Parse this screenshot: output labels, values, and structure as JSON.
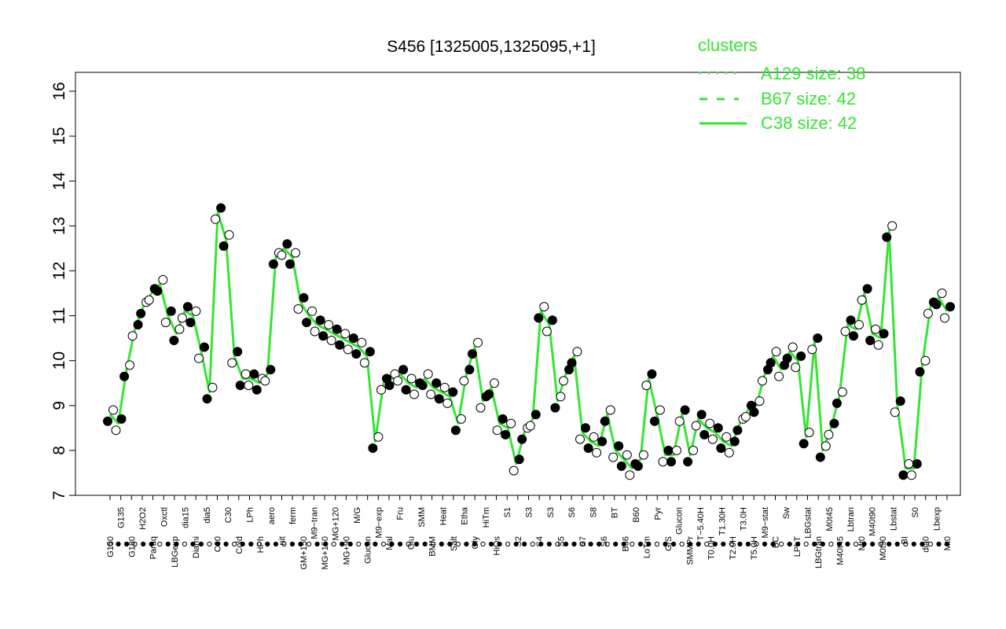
{
  "chart_data": {
    "type": "line",
    "title": "S456 [1325005,1325095,+1]",
    "xlabel": "",
    "ylabel": "",
    "ylim": [
      7,
      16
    ],
    "yticks": [
      7,
      8,
      9,
      10,
      11,
      12,
      13,
      14,
      15,
      16
    ],
    "colors": {
      "line": "#33e633",
      "legend": "#33e633",
      "points_filled": "#000000",
      "points_open": "#ffffff"
    },
    "legend": {
      "title": "clusters",
      "placement": "top-right",
      "entries": [
        {
          "label": "A129 size: 38",
          "style": "dotted"
        },
        {
          "label": "B67 size: 42",
          "style": "dashed"
        },
        {
          "label": "C38 size: 42",
          "style": "solid"
        }
      ]
    },
    "x_labels": [
      "G150",
      "G135",
      "G180",
      "H2O2",
      "Paraq",
      "Oxctl",
      "LBGexp",
      "dia15",
      "Diami",
      "dia5",
      "C90",
      "C30",
      "Cold",
      "LPh",
      "HPh",
      "aero",
      "nit",
      "ferm",
      "GM+150",
      "M9-tran",
      "MG+150",
      "MG+120",
      "MG+90",
      "MG+60",
      "MG+45",
      "MG+30",
      "MG+15",
      "MG+10",
      "MG+5",
      "MG-0.2",
      "MG-2",
      "M/G",
      "Glucon",
      "GM-0.2",
      "GM-2",
      "GM-5",
      "GM-10",
      "GM-15",
      "GM-30",
      "GM-45",
      "GM-60",
      "GM-90",
      "GM-120",
      "M9-exp",
      "Mal",
      "Fru",
      "Glu",
      "SMM",
      "BMM",
      "Heat",
      "Salt",
      "Etha",
      "Gly",
      "HiTm",
      "HiOs",
      "S1",
      "S2",
      "S3",
      "S4",
      "S5",
      "S6",
      "S7",
      "S8",
      "BT",
      "B36",
      "B60",
      "LoTm",
      "Pyr",
      "G/S",
      "Glucon",
      "SMMPr",
      "T-5.40H",
      "T-3.40H",
      "T-2.40H",
      "T-1.40H",
      "T0.0H",
      "T0.30H",
      "T1.0H",
      "T1.30H",
      "T2.0H",
      "T2.30H",
      "T3.0H",
      "T4.0H",
      "T5.0H",
      "M9-stat",
      "BC",
      "Sw",
      "LPhT",
      "LBGstat",
      "LBGtran",
      "M0t45",
      "M40t45",
      "Lbtran",
      "Mt0",
      "M40t90",
      "M0t90",
      "Lbstat",
      "BI",
      "S0",
      "dia0",
      "Lbexp",
      "M0"
    ],
    "x_labels_shown": [
      "G150",
      "G135",
      "G180",
      "H2O2",
      "Paraq",
      "Oxctl",
      "LBGexp",
      "dia15",
      "Diami",
      "dia5",
      "C90",
      "C30",
      "Cold",
      "LPh",
      "HPh",
      "aero",
      "nit",
      "ferm",
      "GM+150",
      "M9−tran",
      "MG+150",
      "MG+120",
      "MG+90",
      "M/G",
      "Glucon",
      "M9−exp",
      "Mal",
      "Fru",
      "Glu",
      "SMM",
      "BMM",
      "Heat",
      "Salt",
      "Etha",
      "Gly",
      "HiTm",
      "HiOs",
      "S1",
      "S2",
      "S3",
      "S4",
      "S3",
      "S5",
      "S6",
      "S7",
      "S8",
      "S6",
      "BT",
      "B36",
      "B60",
      "LoTm",
      "Pyr",
      "G/S",
      "Glucon",
      "SMMPr",
      "T−5.40H",
      "T0.0H",
      "T1.30H",
      "T2.0H",
      "T3.0H",
      "T5.0H",
      "M9−stat",
      "BC",
      "Sw",
      "LPhT",
      "LBGstat",
      "LBGtran",
      "M0t45",
      "M40t45",
      "Lbtran",
      "Mt0",
      "M40t90",
      "M0t90",
      "Lbstat",
      "BI",
      "S0",
      "dia0",
      "Lbexp",
      "Mt0"
    ],
    "series": [
      {
        "values": [
          8.8,
          8.6,
          9.8,
          10.7,
          11.2,
          11.5,
          11.7,
          11.0,
          10.6,
          11.1,
          11.0,
          10.2,
          9.3,
          13.3,
          12.7,
          10.1,
          9.6,
          9.6,
          9.5,
          9.7,
          12.3,
          12.5,
          12.3,
          11.3,
          11.0,
          10.8,
          10.7,
          10.6,
          10.5,
          10.4,
          10.3,
          10.1,
          8.2,
          9.5,
          9.6,
          9.7,
          9.5,
          9.4,
          9.6,
          9.4,
          9.3,
          9.2,
          8.6,
          9.7,
          10.3,
          9.1,
          9.4,
          8.6,
          8.5,
          7.7,
          8.4,
          8.7,
          11.1,
          10.8,
          9.1,
          9.7,
          10.1,
          8.4,
          8.2,
          8.1,
          8.8,
          8.0,
          7.8,
          7.6,
          7.8,
          9.6,
          8.8,
          7.9,
          7.9,
          8.8,
          7.9,
          8.7,
          8.5,
          8.4,
          8.2,
          8.1,
          8.6,
          8.9,
          9.0,
          9.7,
          10.1,
          9.8,
          10.2,
          10.0,
          8.3,
          10.4,
          8.0,
          8.5,
          9.2,
          10.8,
          10.7,
          11.5,
          10.6,
          10.5,
          12.9,
          9.0,
          7.6,
          7.6,
          9.9,
          11.2,
          11.4,
          11.1
        ]
      }
    ]
  }
}
